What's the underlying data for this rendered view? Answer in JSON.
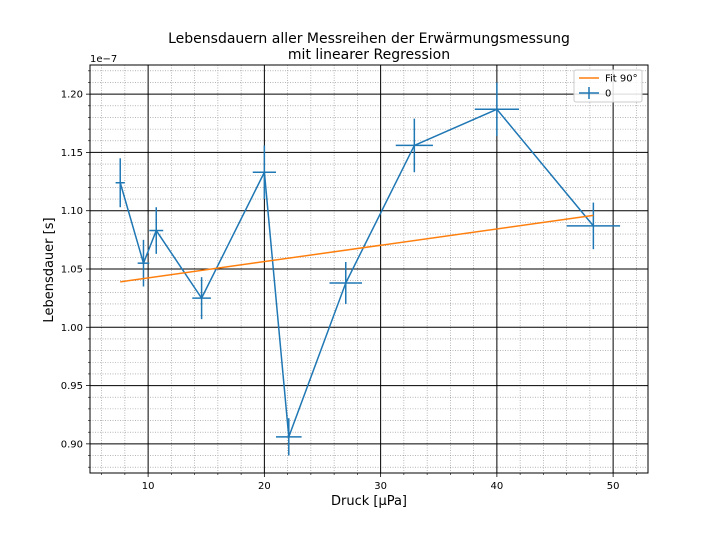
{
  "chart_data": {
    "type": "line",
    "title": "Lebensdauern aller Messreihen der Erwärmungsmessung",
    "subtitle": "mit linearer Regression",
    "xlabel": "Druck [μPa]",
    "ylabel": "Lebensdauer [s]",
    "y_offset_label": "1e−7",
    "xlim": [
      5,
      53
    ],
    "ylim": [
      0.875,
      1.225
    ],
    "xticks": [
      10,
      20,
      30,
      40,
      50
    ],
    "yticks": [
      0.9,
      0.95,
      1.0,
      1.05,
      1.1,
      1.15,
      1.2
    ],
    "grid": true,
    "legend_position": "top-right",
    "colors": {
      "data": "#1f77b4",
      "fit": "#ff7f0e"
    },
    "series": [
      {
        "name": "0",
        "kind": "errorbar",
        "points": [
          {
            "x": 7.6,
            "y": 1.124,
            "xerr": 0.4,
            "yerr": 0.021
          },
          {
            "x": 9.6,
            "y": 1.055,
            "xerr": 0.5,
            "yerr": 0.02
          },
          {
            "x": 10.7,
            "y": 1.083,
            "xerr": 0.6,
            "yerr": 0.02
          },
          {
            "x": 14.6,
            "y": 1.025,
            "xerr": 0.8,
            "yerr": 0.018
          },
          {
            "x": 20.0,
            "y": 1.133,
            "xerr": 1.0,
            "yerr": 0.023
          },
          {
            "x": 22.1,
            "y": 0.906,
            "xerr": 1.1,
            "yerr": 0.016
          },
          {
            "x": 27.0,
            "y": 1.038,
            "xerr": 1.4,
            "yerr": 0.018
          },
          {
            "x": 32.9,
            "y": 1.156,
            "xerr": 1.6,
            "yerr": 0.023
          },
          {
            "x": 40.0,
            "y": 1.187,
            "xerr": 1.9,
            "yerr": 0.023
          },
          {
            "x": 48.3,
            "y": 1.087,
            "xerr": 2.3,
            "yerr": 0.02
          }
        ]
      },
      {
        "name": "Fit 90°",
        "kind": "line",
        "x": [
          7.6,
          48.3
        ],
        "y": [
          1.039,
          1.096
        ]
      }
    ]
  }
}
